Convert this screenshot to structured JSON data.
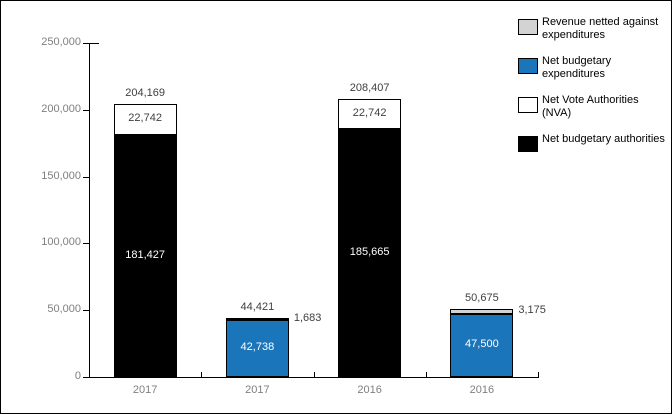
{
  "chart_data": {
    "type": "bar",
    "stacked": true,
    "title": "",
    "grid": false,
    "background": "#ffffff",
    "categories": [
      "2017",
      "2017",
      "2016",
      "2016"
    ],
    "y_axis": {
      "min": 0,
      "max": 250000,
      "step": 50000,
      "tick_labels": [
        "0",
        "50,000",
        "100,000",
        "150,000",
        "200,000",
        "250,000"
      ]
    },
    "bars": [
      {
        "category": "2017",
        "total": 204169,
        "total_label": "204,169",
        "segments": [
          {
            "series": "Net budgetary authorities",
            "value": 181427,
            "label": "181,427",
            "color": "#000000",
            "label_color": "#ffffff",
            "label_position": "inside"
          },
          {
            "series": "Net Vote Authorities (NVA)",
            "value": 22742,
            "label": "22,742",
            "color": "#ffffff",
            "label_color": "#404040",
            "label_position": "inside"
          }
        ]
      },
      {
        "category": "2017",
        "total": 44421,
        "total_label": "44,421",
        "segments": [
          {
            "series": "Net budgetary expenditures",
            "value": 42738,
            "label": "42,738",
            "color": "#1b75bb",
            "label_color": "#ffffff",
            "label_position": "inside"
          },
          {
            "series": "Revenue netted against expenditures",
            "value": 1683,
            "label": "1,683",
            "color": "#d3d3d3",
            "label_color": "#404040",
            "label_position": "right"
          }
        ]
      },
      {
        "category": "2016",
        "total": 208407,
        "total_label": "208,407",
        "segments": [
          {
            "series": "Net budgetary authorities",
            "value": 185665,
            "label": "185,665",
            "color": "#000000",
            "label_color": "#ffffff",
            "label_position": "inside"
          },
          {
            "series": "Net Vote Authorities (NVA)",
            "value": 22742,
            "label": "22,742",
            "color": "#ffffff",
            "label_color": "#404040",
            "label_position": "inside"
          }
        ]
      },
      {
        "category": "2016",
        "total": 50675,
        "total_label": "50,675",
        "segments": [
          {
            "series": "Net budgetary expenditures",
            "value": 47500,
            "label": "47,500",
            "color": "#1b75bb",
            "label_color": "#ffffff",
            "label_position": "inside"
          },
          {
            "series": "Revenue netted against expenditures",
            "value": 3175,
            "label": "3,175",
            "color": "#d3d3d3",
            "label_color": "#404040",
            "label_position": "right"
          }
        ]
      }
    ],
    "legend": {
      "position": "top-right",
      "entries": [
        {
          "label": "Revenue netted against expenditures",
          "color": "#d3d3d3"
        },
        {
          "label": "Net budgetary expenditures",
          "color": "#1b75bb"
        },
        {
          "label": "Net Vote Authorities (NVA)",
          "color": "#ffffff"
        },
        {
          "label": "Net budgetary authorities",
          "color": "#000000"
        }
      ]
    },
    "colors": {
      "axis_text": "#7f7f7f",
      "value_text": "#404040",
      "border": "#000000"
    }
  }
}
